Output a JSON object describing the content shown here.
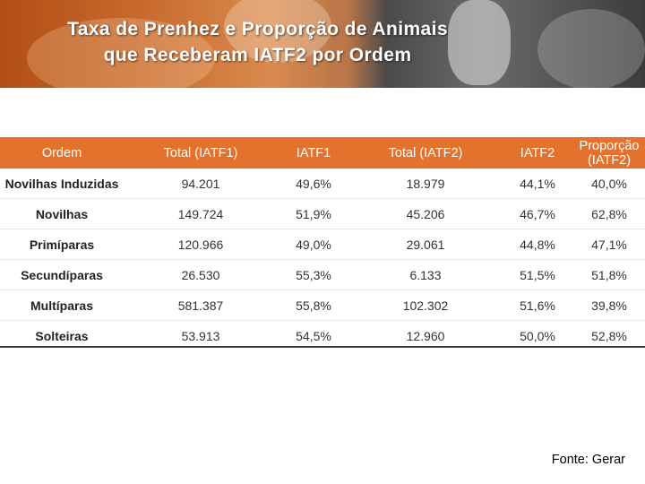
{
  "title": {
    "line1": "Taxa de Prenhez e Proporção de Animais",
    "line2": "que Receberam IATF2 por Ordem"
  },
  "table": {
    "headers": [
      "Ordem",
      "Total (IATF1)",
      "IATF1",
      "Total (IATF2)",
      "IATF2",
      "Proporção (IATF2)"
    ],
    "rows": [
      [
        "Novilhas Induzidas",
        "94.201",
        "49,6%",
        "18.979",
        "44,1%",
        "40,0%"
      ],
      [
        "Novilhas",
        "149.724",
        "51,9%",
        "45.206",
        "46,7%",
        "62,8%"
      ],
      [
        "Primíparas",
        "120.966",
        "49,0%",
        "29.061",
        "44,8%",
        "47,1%"
      ],
      [
        "Secundíparas",
        "26.530",
        "55,3%",
        "6.133",
        "51,5%",
        "51,8%"
      ],
      [
        "Multíparas",
        "581.387",
        "55,8%",
        "102.302",
        "51,6%",
        "39,8%"
      ],
      [
        "Solteiras",
        "53.913",
        "54,5%",
        "12.960",
        "50,0%",
        "52,8%"
      ]
    ]
  },
  "source": "Fonte: Gerar",
  "colors": {
    "header_bg": "#e5722c",
    "banner_orange": "#c86a2e",
    "banner_gray": "#5a5a5a"
  }
}
